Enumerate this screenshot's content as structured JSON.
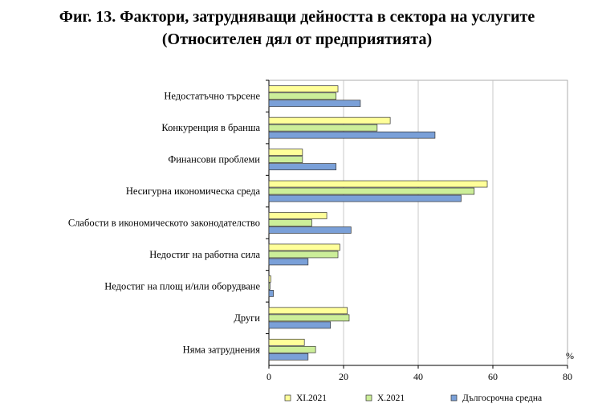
{
  "chart_data": {
    "type": "bar",
    "orientation": "horizontal",
    "title": "Фиг. 13. Фактори, затрудняващи дейността в сектора на услугите",
    "subtitle": "(Относителен дял от предприятията)",
    "unit": "%",
    "categories": [
      "Недостатъчно търсене",
      "Конкуренция в бранша",
      "Финансови проблеми",
      "Несигурна икономическа среда",
      "Слабости в икономическото законодателство",
      "Недостиг на работна сила",
      "Недостиг на площ и/или оборудване",
      "Други",
      "Няма затруднения"
    ],
    "series": [
      {
        "name": "XI.2021",
        "color": "#ffff99",
        "values": [
          18.5,
          32.5,
          9.0,
          58.5,
          15.5,
          19.0,
          0.5,
          21.0,
          9.5
        ]
      },
      {
        "name": "X.2021",
        "color": "#ccee99",
        "values": [
          18.0,
          29.0,
          9.0,
          55.0,
          11.5,
          18.5,
          0.3,
          21.5,
          12.5
        ]
      },
      {
        "name": "Дългосрочна средна",
        "color": "#7aa0d8",
        "values": [
          24.5,
          44.5,
          18.0,
          51.5,
          22.0,
          10.5,
          1.2,
          16.5,
          10.5
        ]
      }
    ],
    "xlim": [
      0,
      80
    ],
    "xticks": [
      0,
      20,
      40,
      60,
      80
    ],
    "grid": true,
    "legend": "bottom"
  }
}
